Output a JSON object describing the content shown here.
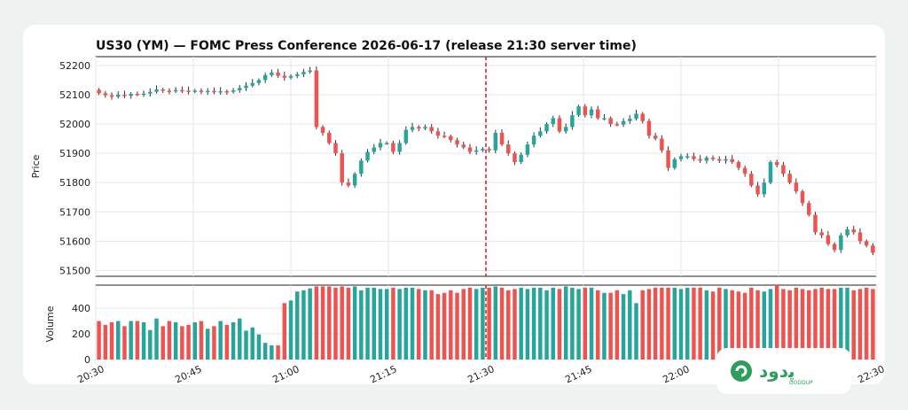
{
  "chart_data": {
    "type": "candlestick",
    "title": "US30 (YM) — FOMC Press Conference 2026-06-17 (release 21:30 server time)",
    "price_panel": {
      "ylabel": "Price",
      "ylim": [
        51480,
        52230
      ],
      "yticks": [
        51500,
        51600,
        51700,
        51800,
        51900,
        52000,
        52100,
        52200
      ],
      "grid": true
    },
    "volume_panel": {
      "ylabel": "Volume",
      "ylim": [
        0,
        580
      ],
      "yticks": [
        0,
        200,
        400
      ],
      "grid": true
    },
    "x_axis": {
      "range_minutes": [
        0,
        120
      ],
      "tick_minutes": [
        0,
        15,
        30,
        45,
        60,
        75,
        90,
        105,
        120
      ],
      "tick_labels": [
        "20:30",
        "20:45",
        "21:00",
        "21:15",
        "21:30",
        "21:45",
        "22:00",
        "22:15",
        "22:30"
      ]
    },
    "event": {
      "label": "release 21:30 server time",
      "minute": 60,
      "color": "#d62728"
    },
    "colors": {
      "up": "#26a69a",
      "down": "#ef5350",
      "grid": "#e6e6e6"
    },
    "series": [
      {
        "name": "candles",
        "close": [
          52105,
          52098,
          52093,
          52100,
          52096,
          52103,
          52101,
          52104,
          52110,
          52118,
          52114,
          52112,
          52116,
          52114,
          52111,
          52114,
          52110,
          52113,
          52108,
          52112,
          52110,
          52115,
          52123,
          52131,
          52140,
          52150,
          52167,
          52176,
          52165,
          52158,
          52164,
          52170,
          52178,
          52183,
          51990,
          51970,
          51935,
          51900,
          51800,
          51790,
          51830,
          51875,
          51905,
          51920,
          51935,
          51935,
          51905,
          51935,
          51980,
          51990,
          51985,
          51990,
          51975,
          51960,
          51958,
          51945,
          51930,
          51920,
          51905,
          51910,
          51915,
          51910,
          51970,
          51930,
          51900,
          51870,
          51895,
          51930,
          51960,
          51975,
          52000,
          52020,
          51975,
          51990,
          52030,
          52060,
          52030,
          52050,
          52020,
          52020,
          52000,
          51998,
          52010,
          52018,
          52035,
          52010,
          51960,
          51950,
          51910,
          51850,
          51880,
          51890,
          51890,
          51880,
          51875,
          51885,
          51880,
          51875,
          51880,
          51870,
          51850,
          51830,
          51790,
          51760,
          51800,
          51870,
          51860,
          51830,
          51800,
          51770,
          51730,
          51690,
          51630,
          51620,
          51590,
          51570,
          51620,
          51640,
          51630,
          51600,
          51585,
          51560
        ],
        "volume": [
          300,
          270,
          290,
          300,
          260,
          300,
          300,
          290,
          230,
          320,
          260,
          300,
          290,
          260,
          270,
          290,
          300,
          240,
          260,
          300,
          270,
          290,
          320,
          225,
          250,
          195,
          130,
          110,
          110,
          440,
          460,
          530,
          540,
          555,
          570,
          570,
          570,
          560,
          570,
          560,
          570,
          540,
          560,
          560,
          550,
          550,
          560,
          550,
          560,
          560,
          550,
          540,
          540,
          510,
          520,
          540,
          520,
          550,
          560,
          550,
          560,
          560,
          570,
          560,
          540,
          550,
          560,
          550,
          560,
          560,
          540,
          560,
          550,
          570,
          560,
          550,
          560,
          560,
          540,
          520,
          520,
          540,
          510,
          540,
          440,
          540,
          550,
          560,
          560,
          560,
          560,
          550,
          560,
          560,
          560,
          540,
          530,
          560,
          550,
          540,
          530,
          520,
          560,
          540,
          530,
          550,
          580,
          550,
          540,
          560,
          550,
          540,
          550,
          560,
          550,
          550,
          560,
          560,
          540,
          550,
          560,
          550
        ]
      }
    ]
  },
  "logo": {
    "text": "ﭘﺩﻭﺩ",
    "sub": "GOODUP"
  }
}
